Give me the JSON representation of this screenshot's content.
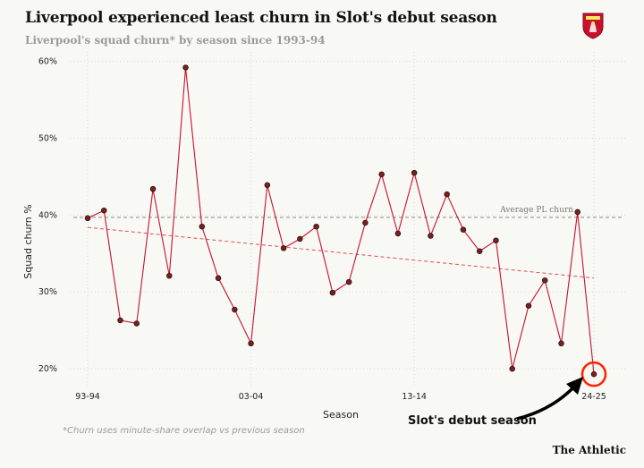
{
  "header": {
    "title": "Liverpool experienced least churn in Slot's debut season",
    "subtitle": "Liverpool's squad churn* by season since 1993-94"
  },
  "footnote": "*Churn uses minute-share overlap vs previous season",
  "brand": "The Athletic",
  "colors": {
    "line": "#c8102e",
    "marker": "#8b1a1a",
    "trend": "#e05050",
    "average": "#888888",
    "highlight": "#ff2200"
  },
  "chart_data": {
    "type": "line",
    "xlabel": "Season",
    "ylabel": "Squad churn %",
    "ylim": [
      18.5,
      61
    ],
    "y_ticks": [
      20,
      30,
      40,
      50,
      60
    ],
    "y_tick_labels": [
      "20%",
      "30%",
      "40%",
      "50%",
      "60%"
    ],
    "x_tick_labels": [
      "93-94",
      "03-04",
      "13-14",
      "24-25"
    ],
    "x_tick_seasons": [
      0,
      10,
      20,
      31
    ],
    "grid": true,
    "series": [
      {
        "seasons": [
          0,
          1,
          2,
          3,
          4,
          5,
          6,
          7,
          8,
          9,
          10,
          11,
          12,
          13,
          14,
          15,
          16,
          17,
          18,
          19,
          20,
          21,
          22,
          23,
          24,
          25,
          26,
          27,
          28,
          29,
          30,
          31
        ],
        "values": [
          39.6,
          40.6,
          26.3,
          25.9,
          43.4,
          32.1,
          59.2,
          38.5,
          31.8,
          27.7,
          23.3,
          43.9,
          35.7,
          36.9,
          38.5,
          29.9,
          31.3,
          39.0,
          45.3,
          37.6,
          45.5,
          37.3,
          42.7,
          38.1,
          35.3,
          36.7,
          20.0,
          28.2,
          31.5,
          23.3,
          40.4,
          19.3
        ]
      }
    ],
    "average_line": {
      "value": 39.7,
      "label": "Average PL churn"
    },
    "trend_line": {
      "start": 38.4,
      "end": 31.8
    },
    "annotation": {
      "text": "Slot's debut season",
      "season": 31
    }
  }
}
